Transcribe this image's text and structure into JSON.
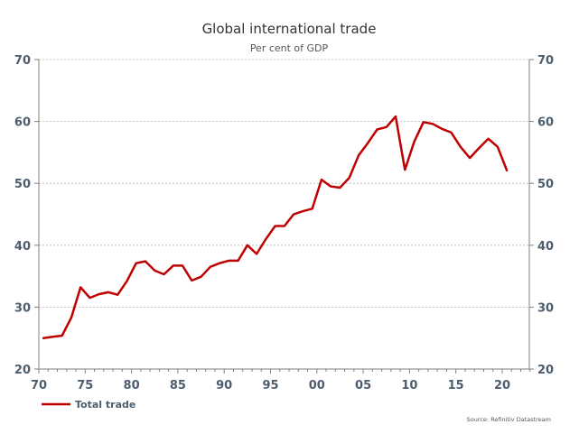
{
  "chart_data": {
    "type": "line",
    "title": "Global international trade",
    "subtitle": "Per cent of GDP",
    "xlabel": "",
    "ylabel": "",
    "xlim": [
      1970,
      2023
    ],
    "ylim": [
      20,
      70
    ],
    "grid": true,
    "x_tick_values": [
      1970,
      1975,
      1980,
      1985,
      1990,
      1995,
      2000,
      2005,
      2010,
      2015,
      2020
    ],
    "x_tick_labels": [
      "70",
      "75",
      "80",
      "85",
      "90",
      "95",
      "00",
      "05",
      "10",
      "15",
      "20"
    ],
    "y_ticks": [
      20,
      30,
      40,
      50,
      60,
      70
    ],
    "y_tick_labels": [
      "20",
      "30",
      "40",
      "50",
      "60",
      "70"
    ],
    "legend_position": "bottom-left",
    "series": [
      {
        "name": "Total trade",
        "color": "#c00000",
        "x": [
          1970,
          1971,
          1972,
          1973,
          1974,
          1975,
          1976,
          1977,
          1978,
          1979,
          1980,
          1981,
          1982,
          1983,
          1984,
          1985,
          1986,
          1987,
          1988,
          1989,
          1990,
          1991,
          1992,
          1993,
          1994,
          1995,
          1996,
          1997,
          1998,
          1999,
          2000,
          2001,
          2002,
          2003,
          2004,
          2005,
          2006,
          2007,
          2008,
          2009,
          2010,
          2011,
          2012,
          2013,
          2014,
          2015,
          2016,
          2017,
          2018,
          2019,
          2020
        ],
        "values": [
          25.0,
          25.2,
          25.4,
          28.3,
          33.2,
          31.5,
          32.1,
          32.4,
          32.0,
          34.2,
          37.1,
          37.4,
          35.9,
          35.3,
          36.7,
          36.7,
          34.3,
          34.9,
          36.5,
          37.1,
          37.5,
          37.5,
          40.0,
          38.6,
          41.0,
          43.1,
          43.1,
          45.0,
          45.5,
          45.9,
          50.6,
          49.5,
          49.3,
          50.9,
          54.5,
          56.5,
          58.7,
          59.1,
          60.8,
          52.2,
          56.7,
          59.9,
          59.6,
          58.8,
          58.2,
          55.9,
          54.1,
          55.7,
          57.2,
          55.9,
          52.1
        ]
      }
    ],
    "source": "Source: Refinitiv Datastream"
  }
}
